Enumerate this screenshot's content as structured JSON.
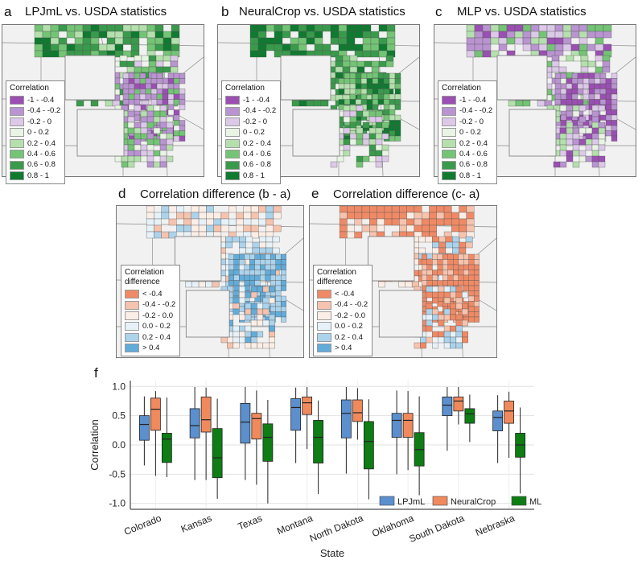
{
  "panels": {
    "a": {
      "label": "a",
      "title": "LPJmL vs. USDA statistics",
      "variant": "base"
    },
    "b": {
      "label": "b",
      "title": "NeuralCrop vs. USDA statistics",
      "variant": "neural"
    },
    "c": {
      "label": "c",
      "title": "MLP vs. USDA statistics",
      "variant": "mlp"
    },
    "d": {
      "label": "d",
      "title": "Correlation difference (b - a)",
      "variant": "diffb"
    },
    "e": {
      "label": "e",
      "title": "Correlation difference (c- a)",
      "variant": "diffc"
    },
    "f": {
      "label": "f"
    }
  },
  "legend_corr": {
    "title": "Correlation",
    "items": [
      {
        "label": "-1 - -0.4",
        "color": "#9b4fb3"
      },
      {
        "label": "-0.4 - -0.2",
        "color": "#b994d1"
      },
      {
        "label": "-0.2 - 0",
        "color": "#dcc9e8"
      },
      {
        "label": "0 - 0.2",
        "color": "#e9f4e4"
      },
      {
        "label": "0.2 - 0.4",
        "color": "#b5e0ae"
      },
      {
        "label": "0.4 - 0.6",
        "color": "#74c476"
      },
      {
        "label": "0.6 - 0.8",
        "color": "#3a9a4c"
      },
      {
        "label": "0.8 - 1",
        "color": "#0f7a30"
      }
    ]
  },
  "legend_diff": {
    "title": "Correlation difference",
    "title_line1": "Correlation",
    "title_line2": "difference",
    "items": [
      {
        "label": "< -0.4",
        "color": "#ef8a66"
      },
      {
        "label": "-0.4 - -0.2",
        "color": "#f6c3ae"
      },
      {
        "label": "-0.2 - 0.0",
        "color": "#fbeee6"
      },
      {
        "label": "0.0 - 0.2",
        "color": "#e6f1f8"
      },
      {
        "label": "0.2 - 0.4",
        "color": "#acd3ec"
      },
      {
        "label": "> 0.4",
        "color": "#62acd9"
      }
    ]
  },
  "chart_data": {
    "type": "box",
    "categories": [
      "Colorado",
      "Kansas",
      "Texas",
      "Montana",
      "North Dakota",
      "Oklahoma",
      "South Dakota",
      "Nebraska"
    ],
    "xlabel": "State",
    "ylabel": "Correlation",
    "ylim": [
      -1.1,
      1.1
    ],
    "yticks": [
      1.0,
      0.5,
      0.0,
      -0.5,
      -1.0
    ],
    "ytick_labels": [
      "1.0",
      "0.5",
      "0.0",
      "-0.5",
      "-1.0"
    ],
    "grid": true,
    "legend_position": "bottom-right",
    "series": [
      {
        "name": "LPJmL",
        "color": "#5b8fce",
        "boxes": [
          {
            "min": -0.35,
            "q1": 0.08,
            "median": 0.35,
            "q3": 0.5,
            "max": 0.83
          },
          {
            "min": -0.6,
            "q1": 0.12,
            "median": 0.33,
            "q3": 0.62,
            "max": 0.99
          },
          {
            "min": -0.6,
            "q1": 0.03,
            "median": 0.39,
            "q3": 0.71,
            "max": 0.99
          },
          {
            "min": -0.31,
            "q1": 0.25,
            "median": 0.64,
            "q3": 0.79,
            "max": 0.98
          },
          {
            "min": -0.49,
            "q1": 0.12,
            "median": 0.54,
            "q3": 0.77,
            "max": 0.99
          },
          {
            "min": -0.5,
            "q1": 0.13,
            "median": 0.42,
            "q3": 0.54,
            "max": 0.93
          },
          {
            "min": -0.1,
            "q1": 0.5,
            "median": 0.68,
            "q3": 0.82,
            "max": 0.99
          },
          {
            "min": -0.31,
            "q1": 0.24,
            "median": 0.47,
            "q3": 0.58,
            "max": 0.85
          }
        ]
      },
      {
        "name": "NeuralCrop",
        "color": "#f08a5d",
        "boxes": [
          {
            "min": -0.53,
            "q1": 0.25,
            "median": 0.61,
            "q3": 0.8,
            "max": 0.92
          },
          {
            "min": -0.6,
            "q1": 0.22,
            "median": 0.43,
            "q3": 0.82,
            "max": 0.98
          },
          {
            "min": -0.68,
            "q1": 0.1,
            "median": 0.45,
            "q3": 0.54,
            "max": 0.93
          },
          {
            "min": -0.07,
            "q1": 0.52,
            "median": 0.72,
            "q3": 0.82,
            "max": 0.99
          },
          {
            "min": 0.09,
            "q1": 0.4,
            "median": 0.55,
            "q3": 0.77,
            "max": 0.97
          },
          {
            "min": -0.43,
            "q1": 0.13,
            "median": 0.42,
            "q3": 0.54,
            "max": 0.92
          },
          {
            "min": 0.35,
            "q1": 0.58,
            "median": 0.75,
            "q3": 0.82,
            "max": 0.99
          },
          {
            "min": -0.22,
            "q1": 0.37,
            "median": 0.58,
            "q3": 0.75,
            "max": 0.91
          }
        ]
      },
      {
        "name": "MLP",
        "color": "#0e7d14",
        "boxes": [
          {
            "min": -0.55,
            "q1": -0.3,
            "median": 0.1,
            "q3": 0.2,
            "max": 0.81
          },
          {
            "min": -0.92,
            "q1": -0.56,
            "median": -0.22,
            "q3": 0.28,
            "max": 0.79
          },
          {
            "min": -1.0,
            "q1": -0.28,
            "median": 0.13,
            "q3": 0.36,
            "max": 0.77
          },
          {
            "min": -0.84,
            "q1": -0.31,
            "median": 0.13,
            "q3": 0.42,
            "max": 0.76
          },
          {
            "min": -0.93,
            "q1": -0.41,
            "median": 0.06,
            "q3": 0.4,
            "max": 0.78
          },
          {
            "min": -0.86,
            "q1": -0.36,
            "median": -0.08,
            "q3": 0.21,
            "max": 0.83
          },
          {
            "min": 0.05,
            "q1": 0.37,
            "median": 0.53,
            "q3": 0.62,
            "max": 0.86
          },
          {
            "min": -0.83,
            "q1": -0.21,
            "median": 0.0,
            "q3": 0.2,
            "max": 0.64
          }
        ]
      }
    ]
  }
}
